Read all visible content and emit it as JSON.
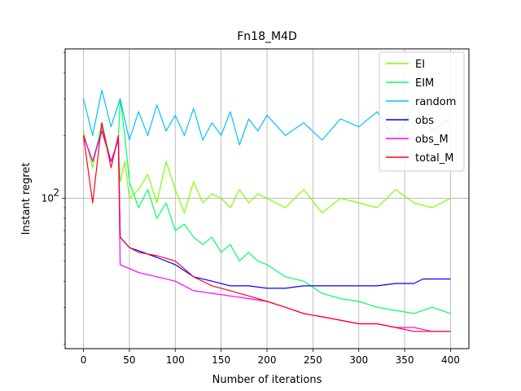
{
  "chart_data": {
    "type": "line",
    "title": "Fn18_M4D",
    "xlabel": "Number of iterations",
    "ylabel": "Instant regret",
    "x_ticks": [
      0,
      50,
      100,
      150,
      200,
      250,
      300,
      350,
      400
    ],
    "y_ticks": [
      {
        "value": 100,
        "label": "10",
        "exponent": "2"
      }
    ],
    "xlim": [
      -20,
      420
    ],
    "ylim": [
      19,
      520
    ],
    "yscale": "log",
    "grid": true,
    "legend_position": "top-right",
    "series": [
      {
        "name": "EI",
        "color": "#80ff00",
        "x": [
          0,
          10,
          20,
          30,
          38,
          40,
          45,
          50,
          60,
          70,
          80,
          90,
          100,
          110,
          120,
          130,
          140,
          150,
          160,
          170,
          180,
          190,
          200,
          220,
          240,
          260,
          280,
          300,
          320,
          340,
          360,
          380,
          400
        ],
        "y": [
          210,
          140,
          230,
          150,
          190,
          120,
          150,
          100,
          110,
          130,
          95,
          150,
          110,
          85,
          120,
          95,
          105,
          100,
          90,
          110,
          95,
          105,
          100,
          90,
          110,
          85,
          100,
          95,
          90,
          110,
          95,
          90,
          100
        ]
      },
      {
        "name": "EIM",
        "color": "#00ff60",
        "x": [
          0,
          10,
          20,
          30,
          38,
          40,
          45,
          50,
          60,
          70,
          80,
          90,
          100,
          110,
          120,
          130,
          140,
          150,
          160,
          170,
          180,
          190,
          200,
          220,
          240,
          260,
          280,
          300,
          320,
          340,
          360,
          380,
          400
        ],
        "y": [
          200,
          150,
          220,
          150,
          190,
          300,
          200,
          120,
          90,
          110,
          80,
          95,
          70,
          75,
          65,
          60,
          65,
          55,
          60,
          50,
          55,
          50,
          48,
          42,
          40,
          35,
          33,
          32,
          30,
          29,
          28,
          30,
          28
        ]
      },
      {
        "name": "random",
        "color": "#00c0ff",
        "x": [
          0,
          10,
          20,
          30,
          40,
          50,
          60,
          70,
          80,
          90,
          100,
          110,
          120,
          130,
          140,
          150,
          160,
          170,
          180,
          190,
          200,
          220,
          240,
          260,
          280,
          300,
          320,
          340,
          360,
          380,
          400
        ],
        "y": [
          300,
          200,
          330,
          220,
          300,
          190,
          260,
          200,
          280,
          210,
          250,
          200,
          270,
          190,
          230,
          200,
          260,
          180,
          240,
          210,
          250,
          200,
          230,
          190,
          240,
          220,
          260,
          190,
          280,
          210,
          240
        ]
      },
      {
        "name": "obs",
        "color": "#0000ff",
        "x": [
          0,
          10,
          20,
          30,
          38,
          40,
          50,
          60,
          80,
          100,
          120,
          140,
          160,
          180,
          200,
          220,
          240,
          260,
          280,
          300,
          320,
          340,
          360,
          370,
          400
        ],
        "y": [
          200,
          150,
          210,
          150,
          190,
          65,
          58,
          56,
          52,
          48,
          42,
          40,
          38,
          38,
          37,
          37,
          38,
          38,
          38,
          38,
          38,
          39,
          39,
          41,
          41
        ]
      },
      {
        "name": "obs_M",
        "color": "#ff00ff",
        "x": [
          0,
          10,
          20,
          30,
          38,
          40,
          50,
          60,
          80,
          100,
          120,
          140,
          160,
          180,
          200,
          220,
          240,
          260,
          280,
          300,
          320,
          340,
          360,
          380,
          400
        ],
        "y": [
          200,
          150,
          210,
          150,
          190,
          48,
          46,
          44,
          42,
          40,
          36,
          35,
          34,
          33,
          32,
          30,
          28,
          27,
          26,
          25,
          25,
          24,
          24,
          23,
          23
        ]
      },
      {
        "name": "total_M",
        "color": "#ff0020",
        "x": [
          0,
          10,
          20,
          30,
          38,
          40,
          50,
          60,
          80,
          100,
          120,
          140,
          160,
          180,
          200,
          220,
          240,
          260,
          280,
          300,
          320,
          340,
          360,
          380,
          400
        ],
        "y": [
          200,
          95,
          230,
          140,
          200,
          65,
          58,
          55,
          53,
          50,
          42,
          38,
          36,
          34,
          32,
          30,
          28,
          27,
          26,
          25,
          25,
          24,
          23,
          23,
          23
        ]
      }
    ]
  }
}
